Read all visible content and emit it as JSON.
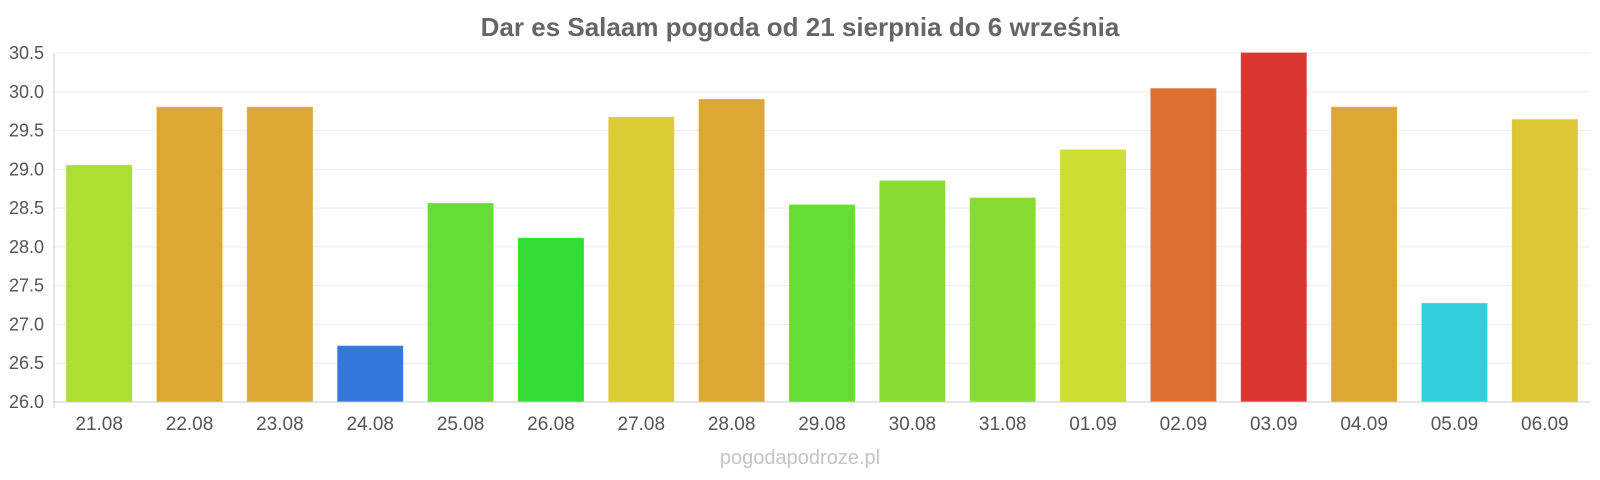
{
  "chart_data": {
    "type": "bar",
    "title": "Dar es Salaam pogoda od 21 sierpnia do 6 września",
    "xlabel": "",
    "ylabel": "",
    "ylim": [
      26.0,
      30.5
    ],
    "yticks": [
      "26.0",
      "26.5",
      "27.0",
      "27.5",
      "28.0",
      "28.5",
      "29.0",
      "29.5",
      "30.0",
      "30.5"
    ],
    "grid": true,
    "categories": [
      "21.08",
      "22.08",
      "23.08",
      "24.08",
      "25.08",
      "26.08",
      "27.08",
      "28.08",
      "29.08",
      "30.08",
      "31.08",
      "01.09",
      "02.09",
      "03.09",
      "04.09",
      "05.09",
      "06.09"
    ],
    "values": [
      29.05,
      29.8,
      29.8,
      26.72,
      28.56,
      28.11,
      29.67,
      29.9,
      28.54,
      28.85,
      28.63,
      29.25,
      30.04,
      30.5,
      29.8,
      27.27,
      29.64
    ],
    "colors": [
      "#addf33",
      "#dca733",
      "#dca733",
      "#3377dc",
      "#66dd33",
      "#33dd33",
      "#dccc33",
      "#dca733",
      "#66dd33",
      "#88dd33",
      "#88dd33",
      "#cddd33",
      "#dc7033",
      "#dc3633",
      "#dca733",
      "#33cedc",
      "#dcc633"
    ]
  },
  "watermark": "pogodapodroze.pl"
}
